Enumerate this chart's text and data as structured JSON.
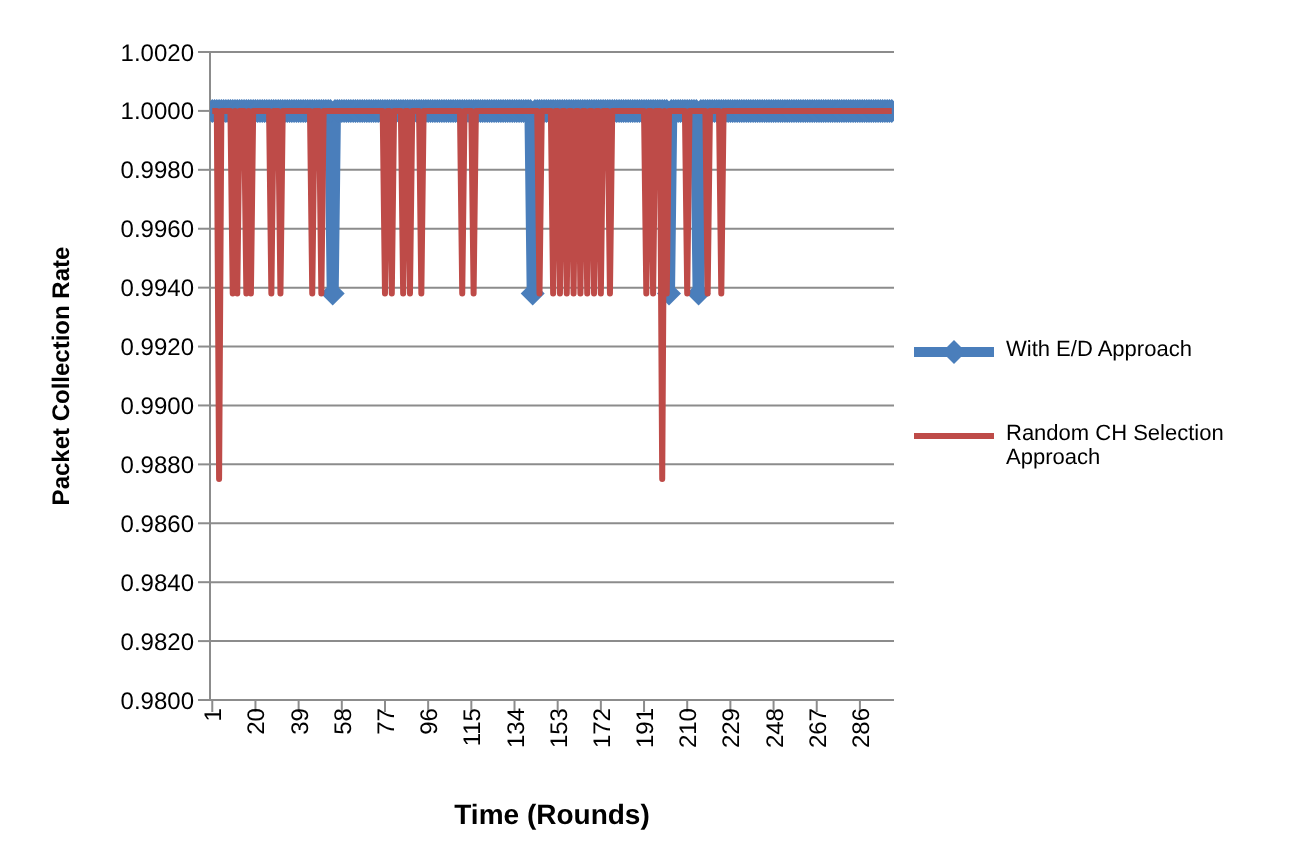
{
  "chart_data": {
    "type": "line",
    "xlabel": "Time (Rounds)",
    "ylabel": "Packet Collection Rate",
    "grid": "y",
    "legend": "right",
    "x": [
      1,
      2,
      3,
      4,
      5,
      6,
      7,
      8,
      9,
      10,
      11,
      12,
      13,
      14,
      15,
      16,
      17,
      18,
      19,
      20,
      21,
      22,
      23,
      24,
      25,
      26,
      27,
      28,
      29,
      30,
      31,
      32,
      33,
      34,
      35,
      36,
      37,
      38,
      39,
      40,
      41,
      42,
      43,
      44,
      45,
      46,
      47,
      48,
      49,
      50,
      51,
      52,
      53,
      54,
      55,
      56,
      57,
      58,
      59,
      60,
      61,
      62,
      63,
      64,
      65,
      66,
      67,
      68,
      69,
      70,
      71,
      72,
      73,
      74,
      75,
      76,
      77,
      78,
      79,
      80,
      81,
      82,
      83,
      84,
      85,
      86,
      87,
      88,
      89,
      90,
      91,
      92,
      93,
      94,
      95,
      96,
      97,
      98,
      99,
      100,
      101,
      102,
      103,
      104,
      105,
      106,
      107,
      108,
      109,
      110,
      111,
      112,
      113,
      114,
      115,
      116,
      117,
      118,
      119,
      120,
      121,
      122,
      123,
      124,
      125,
      126,
      127,
      128,
      129,
      130,
      131,
      132,
      133,
      134,
      135,
      136,
      137,
      138,
      139,
      140,
      141,
      142,
      143,
      144,
      145,
      146,
      147,
      148,
      149,
      150,
      151,
      152,
      153,
      154,
      155,
      156,
      157,
      158,
      159,
      160,
      161,
      162,
      163,
      164,
      165,
      166,
      167,
      168,
      169,
      170,
      171,
      172,
      173,
      174,
      175,
      176,
      177,
      178,
      179,
      180,
      181,
      182,
      183,
      184,
      185,
      186,
      187,
      188,
      189,
      190,
      191,
      192,
      193,
      194,
      195,
      196,
      197,
      198,
      199,
      200,
      201,
      202,
      203,
      204,
      205,
      206,
      207,
      208,
      209,
      210,
      211,
      212,
      213,
      214,
      215,
      216,
      217,
      218,
      219,
      220,
      221,
      222,
      223,
      224,
      225,
      226,
      227,
      228,
      229,
      230,
      231,
      232,
      233,
      234,
      235,
      236,
      237,
      238,
      239,
      240,
      241,
      242,
      243,
      244,
      245,
      246,
      247,
      248,
      249,
      250,
      251,
      252,
      253,
      254,
      255,
      256,
      257,
      258,
      259,
      260,
      261,
      262,
      263,
      264,
      265,
      266,
      267,
      268,
      269,
      270,
      271,
      272,
      273,
      274,
      275,
      276,
      277,
      278,
      279,
      280,
      281,
      282,
      283,
      284,
      285,
      286,
      287,
      288,
      289,
      290,
      291,
      292,
      293,
      294,
      295,
      296,
      297,
      298,
      299,
      300
    ],
    "xlim": [
      0,
      301
    ],
    "xticks": [
      1,
      20,
      39,
      58,
      77,
      96,
      115,
      134,
      153,
      172,
      191,
      210,
      229,
      248,
      267,
      286
    ],
    "ylim": [
      0.98,
      1.002
    ],
    "yticks": [
      {
        "value": 0.98,
        "label": "0.9800"
      },
      {
        "value": 0.982,
        "label": "0.9820"
      },
      {
        "value": 0.984,
        "label": "0.9840"
      },
      {
        "value": 0.986,
        "label": "0.9860"
      },
      {
        "value": 0.988,
        "label": "0.9880"
      },
      {
        "value": 0.99,
        "label": "0.9900"
      },
      {
        "value": 0.992,
        "label": "0.9920"
      },
      {
        "value": 0.994,
        "label": "0.9940"
      },
      {
        "value": 0.996,
        "label": "0.9960"
      },
      {
        "value": 0.998,
        "label": "0.9980"
      },
      {
        "value": 1,
        "label": "1.0000"
      },
      {
        "value": 1.002,
        "label": "1.0020"
      }
    ],
    "series": [
      {
        "name": "With E/D Approach",
        "color": "#4a7ebb",
        "marker": "diamond",
        "values": [
          1,
          1,
          1,
          1,
          1,
          1,
          1,
          1,
          1,
          1,
          1,
          1,
          1,
          1,
          1,
          1,
          1,
          1,
          1,
          1,
          1,
          1,
          1,
          1,
          1,
          1,
          1,
          1,
          1,
          1,
          1,
          1,
          1,
          1,
          1,
          1,
          1,
          1,
          1,
          1,
          1,
          1,
          1,
          1,
          1,
          1,
          1,
          1,
          1,
          1,
          1,
          1,
          1,
          0.9938,
          1,
          1,
          1,
          1,
          1,
          1,
          1,
          1,
          1,
          1,
          1,
          1,
          1,
          1,
          1,
          1,
          1,
          1,
          1,
          1,
          1,
          1,
          1,
          1,
          1,
          1,
          1,
          1,
          1,
          1,
          1,
          1,
          1,
          1,
          1,
          1,
          1,
          1,
          1,
          1,
          1,
          1,
          1,
          1,
          1,
          1,
          1,
          1,
          1,
          1,
          1,
          1,
          1,
          1,
          1,
          1,
          1,
          1,
          1,
          1,
          1,
          1,
          1,
          1,
          1,
          1,
          1,
          1,
          1,
          1,
          1,
          1,
          1,
          1,
          1,
          1,
          1,
          1,
          1,
          1,
          1,
          1,
          1,
          1,
          1,
          1,
          1,
          0.9938,
          1,
          1,
          1,
          1,
          1,
          1,
          1,
          1,
          1,
          1,
          1,
          1,
          1,
          1,
          1,
          1,
          1,
          1,
          1,
          1,
          1,
          1,
          1,
          1,
          1,
          1,
          1,
          1,
          1,
          1,
          1,
          1,
          1,
          1,
          1,
          1,
          1,
          1,
          1,
          1,
          1,
          1,
          1,
          1,
          1,
          1,
          1,
          1,
          1,
          1,
          1,
          1,
          1,
          1,
          1,
          1,
          1,
          1,
          1,
          0.9938,
          1,
          1,
          1,
          1,
          1,
          1,
          1,
          1,
          1,
          1,
          1,
          1,
          0.9938,
          1,
          1,
          1,
          1,
          1,
          1,
          1,
          1,
          1,
          1,
          1,
          1,
          1,
          1,
          1,
          1,
          1,
          1,
          1,
          1,
          1,
          1,
          1,
          1,
          1,
          1,
          1,
          1,
          1,
          1,
          1,
          1,
          1,
          1,
          1,
          1,
          1,
          1,
          1,
          1,
          1,
          1,
          1,
          1,
          1,
          1,
          1,
          1,
          1,
          1,
          1,
          1,
          1,
          1,
          1,
          1,
          1,
          1,
          1,
          1,
          1,
          1,
          1,
          1,
          1,
          1,
          1,
          1,
          1,
          1,
          1,
          1,
          1,
          1,
          1,
          1,
          1,
          1,
          1,
          1,
          1,
          1,
          1,
          1,
          1
        ]
      },
      {
        "name": "Random CH Selection Approach",
        "color": "#be4b48",
        "marker": "none",
        "values": [
          1,
          1,
          1,
          0.9875,
          1,
          1,
          1,
          1,
          1,
          0.9938,
          1,
          0.9938,
          1,
          1,
          1,
          0.9938,
          1,
          0.9938,
          1,
          1,
          1,
          1,
          1,
          1,
          1,
          1,
          0.9938,
          1,
          1,
          1,
          0.9938,
          1,
          1,
          1,
          1,
          1,
          1,
          1,
          1,
          1,
          1,
          1,
          1,
          1,
          0.9938,
          1,
          1,
          1,
          0.9938,
          1,
          1,
          1,
          1,
          1,
          1,
          1,
          1,
          1,
          1,
          1,
          1,
          1,
          1,
          1,
          1,
          1,
          1,
          1,
          1,
          1,
          1,
          1,
          1,
          1,
          1,
          1,
          0.9938,
          1,
          1,
          0.9938,
          1,
          1,
          1,
          1,
          0.9938,
          1,
          1,
          0.9938,
          1,
          1,
          1,
          1,
          0.9938,
          1,
          1,
          1,
          1,
          1,
          1,
          1,
          1,
          1,
          1,
          1,
          1,
          1,
          1,
          1,
          1,
          1,
          0.9938,
          1,
          1,
          1,
          1,
          0.9938,
          1,
          1,
          1,
          1,
          1,
          1,
          1,
          1,
          1,
          1,
          1,
          1,
          1,
          1,
          1,
          1,
          1,
          1,
          1,
          1,
          1,
          1,
          1,
          1,
          1,
          1,
          1,
          1,
          0.9938,
          1,
          1,
          1,
          1,
          1,
          0.9938,
          1,
          1,
          0.9938,
          1,
          1,
          0.9938,
          1,
          1,
          0.9938,
          1,
          1,
          0.9938,
          1,
          1,
          0.9938,
          1,
          1,
          0.9938,
          1,
          1,
          0.9938,
          1,
          1,
          1,
          0.9938,
          1,
          1,
          1,
          1,
          1,
          1,
          1,
          1,
          1,
          1,
          1,
          1,
          1,
          1,
          1,
          0.9938,
          1,
          1,
          0.9938,
          1,
          1,
          1,
          0.9875,
          1,
          0.9938,
          1,
          1,
          1,
          1,
          1,
          1,
          1,
          1,
          0.9938,
          1,
          1,
          1,
          1,
          1,
          1,
          1,
          1,
          0.9938,
          1,
          1,
          1,
          1,
          1,
          0.9938,
          1,
          1,
          1,
          1,
          1,
          1,
          1,
          1,
          1,
          1,
          1,
          1,
          1,
          1,
          1,
          1,
          1,
          1,
          1,
          1,
          1,
          1,
          1,
          1,
          1,
          1,
          1,
          1,
          1,
          1,
          1,
          1,
          1,
          1,
          1,
          1,
          1,
          1,
          1,
          1,
          1,
          1,
          1,
          1,
          1,
          1,
          1,
          1,
          1,
          1,
          1,
          1,
          1,
          1,
          1,
          1,
          1,
          1,
          1,
          1,
          1,
          1,
          1,
          1,
          1,
          1,
          1,
          1,
          1,
          1,
          1,
          1,
          1,
          1,
          1
        ]
      }
    ]
  }
}
